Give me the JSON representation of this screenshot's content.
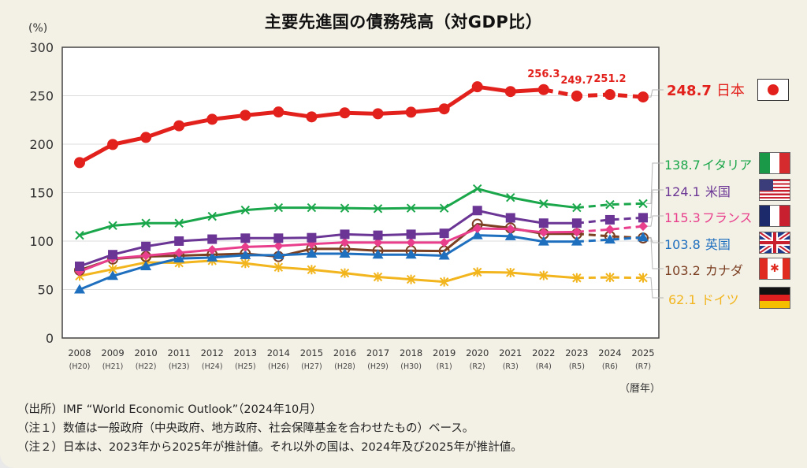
{
  "chart_data": {
    "type": "line",
    "title": "主要先進国の債務残高（対GDP比）",
    "ylabel": "(%)",
    "xlabel": "（暦年）",
    "ylim": [
      0,
      300
    ],
    "yticks": [
      0,
      50,
      100,
      150,
      200,
      250,
      300
    ],
    "grid": true,
    "legend": "right",
    "categories": [
      "2008",
      "2009",
      "2010",
      "2011",
      "2012",
      "2013",
      "2014",
      "2015",
      "2016",
      "2017",
      "2018",
      "2019",
      "2020",
      "2021",
      "2022",
      "2023",
      "2024",
      "2025"
    ],
    "sub_categories": [
      "(H20)",
      "(H21)",
      "(H22)",
      "(H23)",
      "(H24)",
      "(H25)",
      "(H26)",
      "(H27)",
      "(H28)",
      "(H29)",
      "(H30)",
      "(R1)",
      "(R2)",
      "(R3)",
      "(R4)",
      "(R5)",
      "(R6)",
      "(R7)"
    ],
    "series": [
      {
        "name": "日本",
        "key": "japan",
        "color": "#e3211c",
        "marker": "circle",
        "estimate_from": "2022",
        "values": [
          181,
          199.7,
          207,
          219,
          225.7,
          229.8,
          233.2,
          228.2,
          232.3,
          231.4,
          233,
          236.4,
          259.2,
          254.3,
          256.3,
          249.7,
          251.2,
          248.7
        ],
        "end_label": "248.7",
        "flag": "japan"
      },
      {
        "name": "イタリア",
        "key": "italy",
        "color": "#1aa64a",
        "marker": "x",
        "estimate_from": "2023",
        "values": [
          106,
          116,
          118.5,
          118.5,
          125.5,
          132,
          134.5,
          134.5,
          134,
          133.5,
          134,
          134,
          154,
          145,
          138.5,
          134.5,
          137.7,
          138.7
        ],
        "end_label": "138.7",
        "flag": "italy"
      },
      {
        "name": "米国",
        "key": "usa",
        "color": "#6a3594",
        "marker": "square",
        "estimate_from": "2023",
        "values": [
          74,
          86,
          94.5,
          100,
          102,
          103,
          103,
          103.5,
          107,
          106,
          107,
          108,
          131.5,
          124,
          118.5,
          118.5,
          122,
          124.1
        ],
        "end_label": "124.1",
        "flag": "usa"
      },
      {
        "name": "フランス",
        "key": "france",
        "color": "#e83e8c",
        "marker": "diamond",
        "estimate_from": "2023",
        "values": [
          68.5,
          82,
          85,
          88,
          91,
          94,
          95,
          97,
          98.6,
          98.5,
          98.5,
          98.5,
          113,
          112.5,
          109,
          109.5,
          112,
          115.3
        ],
        "end_label": "115.3",
        "flag": "france"
      },
      {
        "name": "英国",
        "key": "uk",
        "color": "#1f6fbf",
        "marker": "triangle",
        "estimate_from": "2023",
        "values": [
          50,
          64,
          74,
          82,
          83,
          85.5,
          85.5,
          87,
          87,
          86,
          86,
          85,
          106,
          105,
          99.5,
          99.5,
          101.5,
          103.8
        ],
        "end_label": "103.8",
        "flag": "uk"
      },
      {
        "name": "カナダ",
        "key": "canada",
        "color": "#7b3f22",
        "marker": "open-circle",
        "estimate_from": "2023",
        "values": [
          70,
          81.5,
          84,
          85,
          86,
          87,
          84,
          92,
          92,
          90,
          90,
          89.7,
          117.5,
          113.5,
          107.5,
          107.5,
          105,
          103.2
        ],
        "end_label": "103.2",
        "flag": "canada"
      },
      {
        "name": "ドイツ",
        "key": "germany",
        "color": "#f2b51d",
        "marker": "asterisk",
        "estimate_from": "2023",
        "values": [
          64,
          71,
          78,
          77.5,
          79.8,
          77,
          73,
          70.5,
          67,
          63,
          60.5,
          58,
          68,
          67.5,
          64.5,
          62,
          62.5,
          62.1
        ],
        "end_label": "62.1",
        "flag": "germany"
      }
    ],
    "annotations": [
      {
        "series": "日本",
        "x": "2022",
        "text": "256.3"
      },
      {
        "series": "日本",
        "x": "2023",
        "text": "249.7"
      },
      {
        "series": "日本",
        "x": "2024",
        "text": "251.2"
      }
    ]
  },
  "notes": [
    "（出所）IMF “World Economic Outlook”（2024年10月）",
    "（注１）数値は一般政府（中央政府、地方政府、社会保障基金を合わせたもの）ベース。",
    "（注２）日本は、2023年から2025年が推計値。それ以外の国は、2024年及び2025年が推計値。"
  ]
}
